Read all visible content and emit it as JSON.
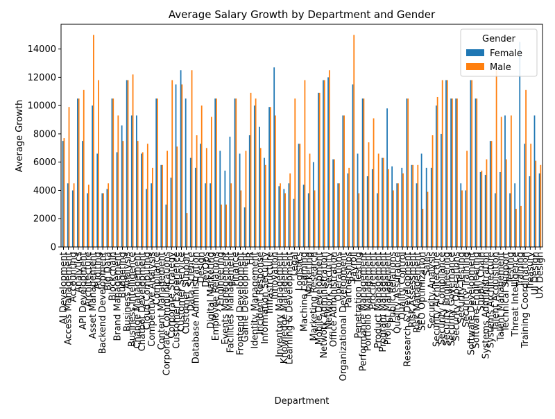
{
  "chart_data": {
    "type": "bar",
    "title": "Average Salary Growth by Department and Gender",
    "xlabel": "Department",
    "ylabel": "Average Growth",
    "legend_title": "Gender",
    "legend": "upper right",
    "ylim": [
      0,
      15750
    ],
    "yticks": [
      0,
      2000,
      4000,
      6000,
      8000,
      10000,
      12000,
      14000
    ],
    "categories": [
      "AI Development",
      "Access Management",
      "Accounting",
      "Analytics",
      "API Development",
      "Architecture",
      "Asset Management",
      "Auditing",
      "Backend Development",
      "Big Data",
      "Blockchain",
      "Brand Management",
      "Budgeting",
      "Business Analysis",
      "Business Intelligence",
      "Change Management",
      "Chatbot Development",
      "Cloud Computing",
      "Competitive Analysis",
      "Compliance",
      "Content Management",
      "Corporate Communications",
      "Corporate Strategy",
      "Customer Experience",
      "Customer Service",
      "Customer Support",
      "Data Science",
      "Database Administration",
      "Design",
      "DevOps",
      "Digital Marketing",
      "Employee Relations",
      "Engineering",
      "Events Management",
      "Facilities Management",
      "Finance",
      "Frontend Development",
      "Game Development",
      "HR",
      "Identity Management",
      "Incident Response",
      "Information Security",
      "Infrastructure",
      "Innovation",
      "Inventory Management",
      "Knowledge Management",
      "Learning & Development",
      "Legal",
      "Logistics",
      "Machine Learning",
      "Marketing",
      "Marketing Research",
      "Mobile Development",
      "Network Administration",
      "Network Security",
      "Office Administration",
      "Operations",
      "Organizational Development",
      "Partnerships",
      "Payroll",
      "Penetration Testing",
      "Performance Management",
      "Portfolio Management",
      "Procurement",
      "Product Management",
      "Program Management",
      "Project Management",
      "Public Relations",
      "Quality Assurance",
      "Quality Control",
      "Research & Development",
      "Risk Assessment",
      "Risk Management",
      "SEO Optimization",
      "Sales",
      "Security Analysis",
      "Security Architecture",
      "Security Compliance",
      "Security Engineering",
      "Security Governance",
      "Security Operations",
      "Security Testing",
      "Security Training",
      "Software Development",
      "Software Engineering",
      "Supply Chain",
      "Systems Administration",
      "Systems Architecture",
      "Talent Acquisition",
      "Talent Management",
      "Technical Support",
      "Testing",
      "Threat Intelligence",
      "Training",
      "Training Coordination",
      "Treasury",
      "UI Design",
      "UX Design"
    ],
    "series": [
      {
        "name": "Female",
        "color": "#1f77b4",
        "values": [
          7500,
          4500,
          4000,
          10500,
          7500,
          3800,
          10000,
          6600,
          3800,
          4100,
          10500,
          6700,
          8600,
          11800,
          9300,
          9300,
          6600,
          4100,
          4500,
          10500,
          5800,
          3000,
          4900,
          11500,
          12500,
          10500,
          6300,
          5600,
          7300,
          4500,
          4500,
          10500,
          6800,
          5400,
          7800,
          10500,
          6600,
          2800,
          7900,
          10000,
          8500,
          6300,
          9900,
          12700,
          4300,
          4100,
          4500,
          3400,
          7300,
          4400,
          3800,
          6000,
          10900,
          11800,
          12000,
          6200,
          4500,
          9300,
          5200,
          11500,
          6600,
          10500,
          5000,
          5500,
          3800,
          6300,
          9800,
          5700,
          4500,
          5600,
          10500,
          5800,
          4500,
          6600,
          5600,
          5600,
          10000,
          8000,
          11800,
          10500,
          10500,
          4500,
          4000,
          11800,
          10500,
          5300,
          5100,
          7500,
          3800,
          5300,
          9300,
          3800,
          4500,
          14500,
          7300,
          5000,
          9300,
          5200
        ]
      },
      {
        "name": "Male",
        "color": "#ff7f0e",
        "values": [
          7700,
          9900,
          4500,
          10500,
          11100,
          4400,
          15000,
          11800,
          3800,
          4500,
          10500,
          9300,
          7500,
          11800,
          12200,
          7500,
          6700,
          7300,
          5600,
          10500,
          5800,
          6800,
          11800,
          7100,
          11500,
          2400,
          12500,
          7900,
          10000,
          7000,
          9200,
          10500,
          3000,
          3000,
          4500,
          10500,
          4000,
          6800,
          10900,
          10500,
          7000,
          5800,
          9900,
          9300,
          4500,
          3800,
          5200,
          10500,
          7300,
          11800,
          6600,
          4000,
          10900,
          11800,
          12500,
          6200,
          4500,
          9300,
          5600,
          15000,
          3800,
          10500,
          7400,
          9100,
          6600,
          6300,
          5500,
          4000,
          4500,
          5200,
          10500,
          5800,
          5800,
          2700,
          3900,
          7900,
          10600,
          11800,
          11800,
          10500,
          10500,
          4000,
          6800,
          11800,
          10500,
          5400,
          6200,
          7500,
          12500,
          9200,
          6200,
          9300,
          2700,
          2900,
          11100,
          7300,
          6100,
          5800
        ]
      }
    ]
  }
}
